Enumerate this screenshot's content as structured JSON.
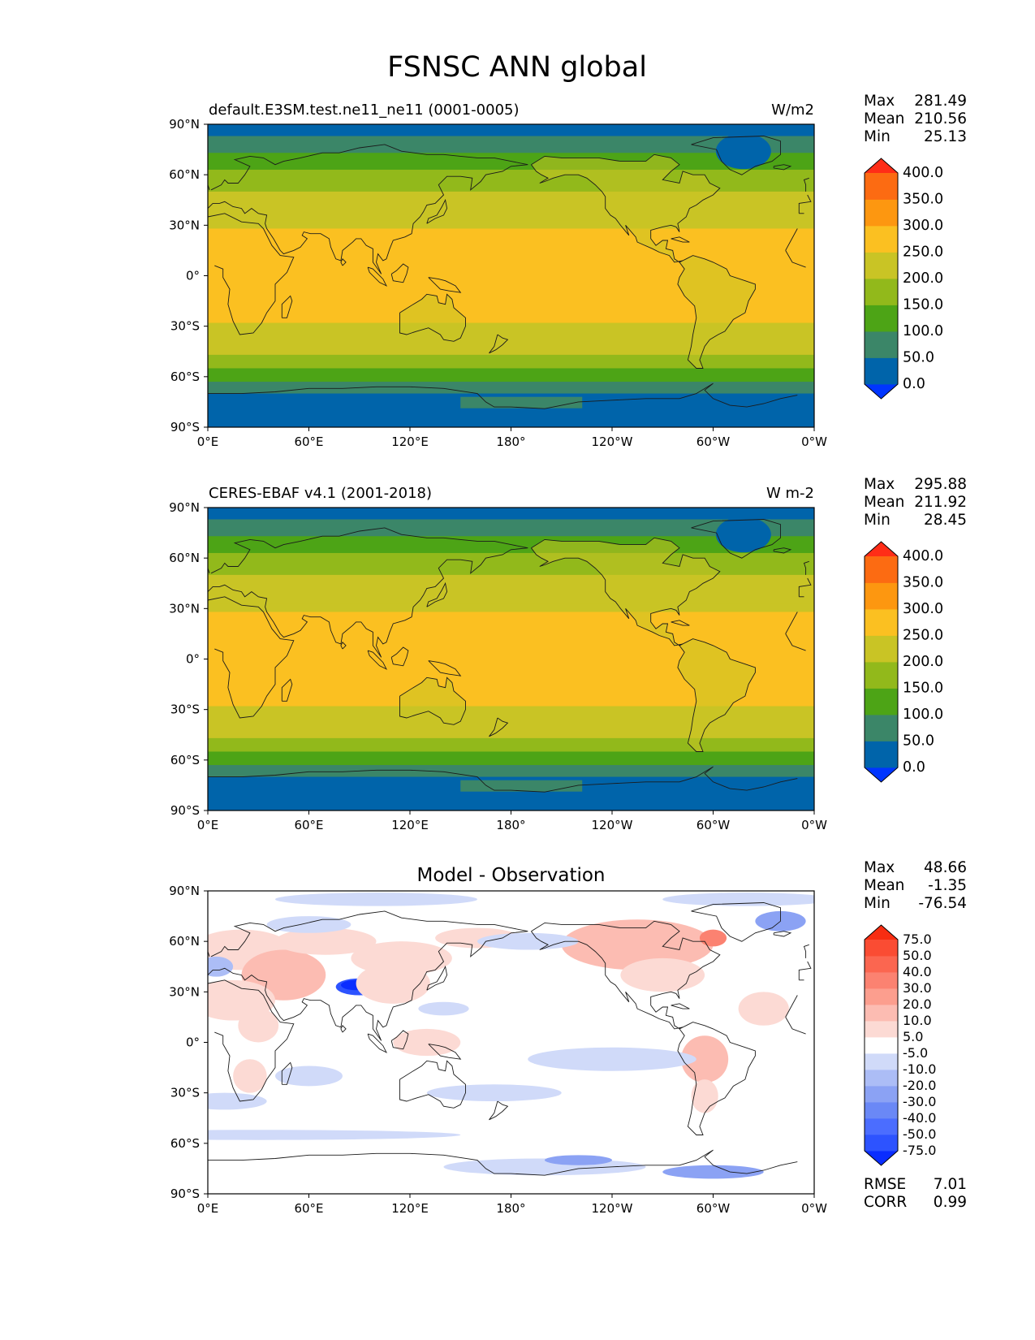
{
  "figure": {
    "title": "FSNSC ANN global"
  },
  "panels": [
    {
      "id": "test",
      "left_label": "default.E3SM.test.ne11_ne11 (0001-0005)",
      "center_title": "",
      "units": "W/m2",
      "stats": [
        {
          "label": "Max",
          "value": "281.49"
        },
        {
          "label": "Mean",
          "value": "210.56"
        },
        {
          "label": "Min",
          "value": "25.13"
        }
      ],
      "colorbar": {
        "labels": [
          "400.0",
          "350.0",
          "300.0",
          "250.0",
          "200.0",
          "150.0",
          "100.0",
          "50.0",
          "0.0"
        ],
        "colors": [
          "#0035ff",
          "#0064aa",
          "#3b8668",
          "#4da416",
          "#92b91b",
          "#c9c425",
          "#fbc021",
          "#fd9710",
          "#fc6b12",
          "#ff2d17"
        ],
        "extend": "both"
      },
      "metrics": []
    },
    {
      "id": "reference",
      "left_label": "CERES-EBAF v4.1 (2001-2018)",
      "center_title": "",
      "units": "W m-2",
      "stats": [
        {
          "label": "Max",
          "value": "295.88"
        },
        {
          "label": "Mean",
          "value": "211.92"
        },
        {
          "label": "Min",
          "value": "28.45"
        }
      ],
      "colorbar": {
        "labels": [
          "400.0",
          "350.0",
          "300.0",
          "250.0",
          "200.0",
          "150.0",
          "100.0",
          "50.0",
          "0.0"
        ],
        "colors": [
          "#0035ff",
          "#0064aa",
          "#3b8668",
          "#4da416",
          "#92b91b",
          "#c9c425",
          "#fbc021",
          "#fd9710",
          "#fc6b12",
          "#ff2d17"
        ],
        "extend": "both"
      },
      "metrics": []
    },
    {
      "id": "difference",
      "left_label": "",
      "center_title": "Model - Observation",
      "units": "",
      "stats": [
        {
          "label": "Max",
          "value": "48.66"
        },
        {
          "label": "Mean",
          "value": "-1.35"
        },
        {
          "label": "Min",
          "value": "-76.54"
        }
      ],
      "colorbar": {
        "labels": [
          "75.0",
          "50.0",
          "40.0",
          "30.0",
          "20.0",
          "10.0",
          "5.0",
          "-5.0",
          "-10.0",
          "-20.0",
          "-30.0",
          "-40.0",
          "-50.0",
          "-75.0"
        ],
        "colors": [
          "#0a2dff",
          "#2d53ff",
          "#4b6dff",
          "#6a88f6",
          "#8ba2f4",
          "#acbdf6",
          "#d0daf9",
          "#ffffff",
          "#fcdad4",
          "#fcbcb2",
          "#fc9e8e",
          "#fb8271",
          "#fb6650",
          "#fa4c33",
          "#f72d12"
        ],
        "extend": "both"
      },
      "metrics": [
        {
          "label": "RMSE",
          "value": "7.01"
        },
        {
          "label": "CORR",
          "value": "0.99"
        }
      ]
    }
  ],
  "axes": {
    "lat_ticks": [
      "90°N",
      "60°N",
      "30°N",
      "0°",
      "30°S",
      "60°S",
      "90°S"
    ],
    "lon_ticks": [
      "0°E",
      "60°E",
      "120°E",
      "180°",
      "120°W",
      "60°W",
      "0°W"
    ]
  }
}
